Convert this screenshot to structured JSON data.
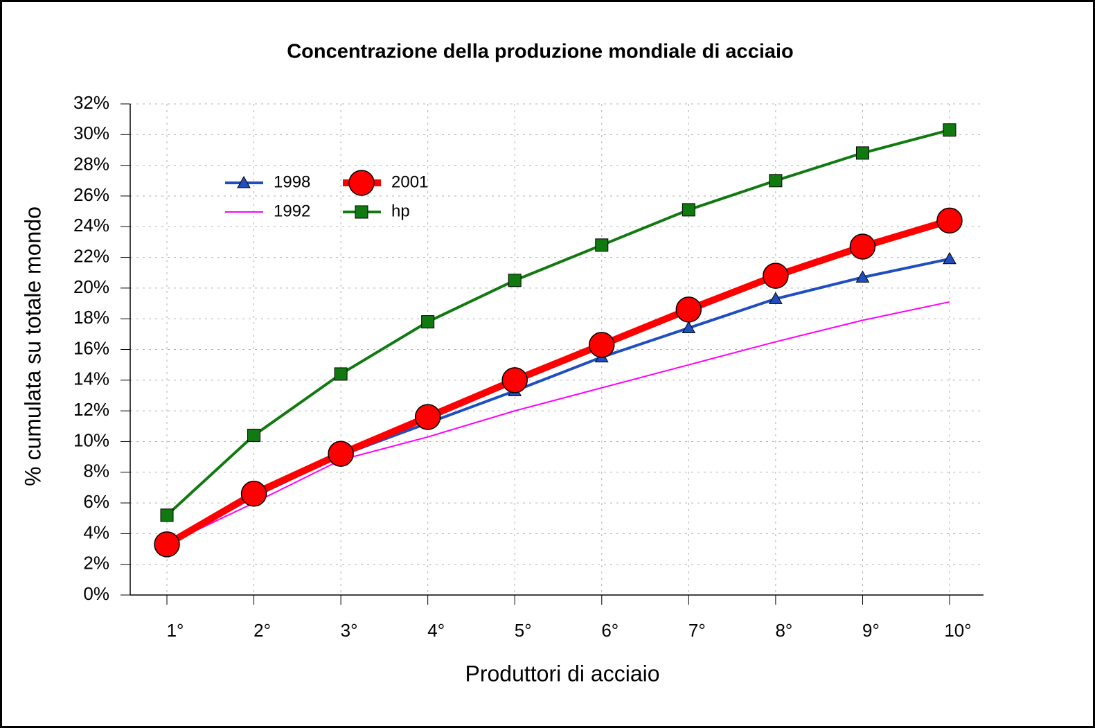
{
  "chart_data": {
    "type": "line",
    "title": "Concentrazione della produzione mondiale di acciaio",
    "x_label": "Produttori di acciaio",
    "y_label": "% cumulata su totale mondo",
    "categories": [
      "1°",
      "2°",
      "3°",
      "4°",
      "5°",
      "6°",
      "7°",
      "8°",
      "9°",
      "10°"
    ],
    "series": [
      {
        "name": "1998",
        "color": "#1f4fbf",
        "marker": "triangle",
        "line_width": 4,
        "values": [
          3.3,
          6.4,
          9.1,
          11.2,
          13.3,
          15.5,
          17.4,
          19.3,
          20.7,
          21.9
        ]
      },
      {
        "name": "2001",
        "color": "#ff0000",
        "marker": "circle",
        "line_width": 10,
        "values": [
          3.3,
          6.6,
          9.2,
          11.6,
          14.0,
          16.3,
          18.6,
          20.8,
          22.7,
          24.4
        ]
      },
      {
        "name": "1992",
        "color": "#ff00ff",
        "marker": "none",
        "line_width": 2,
        "values": [
          3.3,
          6.0,
          8.8,
          10.3,
          12.0,
          13.5,
          15.0,
          16.5,
          17.9,
          19.1
        ]
      },
      {
        "name": "hp",
        "color": "#107a10",
        "marker": "square",
        "line_width": 4,
        "values": [
          5.2,
          10.4,
          14.4,
          17.8,
          20.5,
          22.8,
          25.1,
          27.0,
          28.8,
          30.3
        ]
      }
    ],
    "ylim": [
      0,
      32
    ],
    "yticks": [
      {
        "value": 0,
        "label": "0%"
      },
      {
        "value": 2,
        "label": "2%"
      },
      {
        "value": 4,
        "label": "4%"
      },
      {
        "value": 6,
        "label": "6%"
      },
      {
        "value": 8,
        "label": "8%"
      },
      {
        "value": 10,
        "label": "10%"
      },
      {
        "value": 12,
        "label": "12%"
      },
      {
        "value": 14,
        "label": "14%"
      },
      {
        "value": 16,
        "label": "16%"
      },
      {
        "value": 18,
        "label": "18%"
      },
      {
        "value": 20,
        "label": "20%"
      },
      {
        "value": 22,
        "label": "22%"
      },
      {
        "value": 24,
        "label": "24%"
      },
      {
        "value": 26,
        "label": "26%"
      },
      {
        "value": 28,
        "label": "28%"
      },
      {
        "value": 30,
        "label": "30%"
      },
      {
        "value": 32,
        "label": "32%"
      }
    ],
    "grid": true
  }
}
